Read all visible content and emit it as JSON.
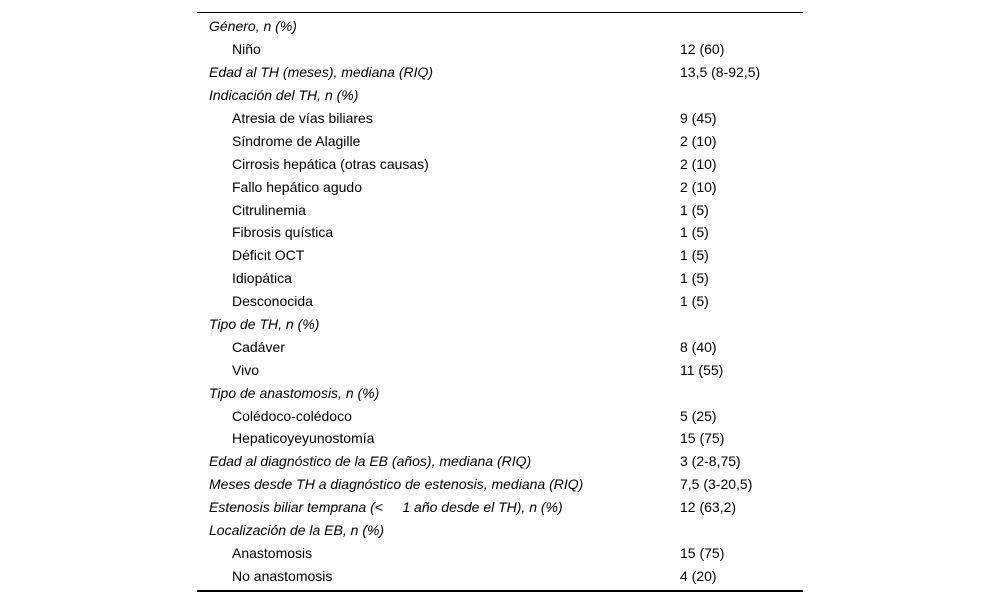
{
  "table": {
    "rows": [
      {
        "type": "header",
        "label": "Género, n (%)",
        "value": ""
      },
      {
        "type": "item",
        "label": "Niño",
        "value": "12 (60)"
      },
      {
        "type": "header",
        "label": "Edad al TH (meses), mediana (RIQ)",
        "value": "13,5 (8-92,5)"
      },
      {
        "type": "header",
        "label": "Indicación del TH, n (%)",
        "value": ""
      },
      {
        "type": "item",
        "label": "Atresia de vías biliares",
        "value": "9 (45)"
      },
      {
        "type": "item",
        "label": "Síndrome de Alagille",
        "value": "2 (10)"
      },
      {
        "type": "item",
        "label": "Cirrosis hepática (otras causas)",
        "value": "2 (10)"
      },
      {
        "type": "item",
        "label": "Fallo hepático agudo",
        "value": "2 (10)"
      },
      {
        "type": "item",
        "label": "Citrulinemia",
        "value": "1 (5)"
      },
      {
        "type": "item",
        "label": "Fibrosis quística",
        "value": "1 (5)"
      },
      {
        "type": "item",
        "label": "Déficit OCT",
        "value": "1 (5)"
      },
      {
        "type": "item",
        "label": "Idiopática",
        "value": "1 (5)"
      },
      {
        "type": "item",
        "label": "Desconocida",
        "value": "1 (5)"
      },
      {
        "type": "header",
        "label": "Tipo de TH, n (%)",
        "value": ""
      },
      {
        "type": "item",
        "label": "Cadáver",
        "value": "8 (40)"
      },
      {
        "type": "item",
        "label": "Vivo",
        "value": "11 (55)"
      },
      {
        "type": "header",
        "label": "Tipo de anastomosis, n (%)",
        "value": ""
      },
      {
        "type": "item",
        "label": "Colédoco-colédoco",
        "value": "5 (25)"
      },
      {
        "type": "item",
        "label": "Hepaticoyeyunostomía",
        "value": "15 (75)"
      },
      {
        "type": "header",
        "label": "Edad al diagnóstico de la EB (años), mediana (RIQ)",
        "value": "3 (2-8,75)"
      },
      {
        "type": "header",
        "label": "Meses desde TH a diagnóstico de estenosis, mediana (RIQ)",
        "value": "7,5 (3-20,5)"
      },
      {
        "type": "header",
        "label": "Estenosis biliar temprana (<     1 año desde el TH), n (%)",
        "value": "12 (63,2)"
      },
      {
        "type": "header",
        "label": "Localización de la EB, n (%)",
        "value": ""
      },
      {
        "type": "item",
        "label": "Anastomosis",
        "value": "15 (75)"
      },
      {
        "type": "item",
        "label": "No anastomosis",
        "value": "4 (20)"
      }
    ]
  }
}
